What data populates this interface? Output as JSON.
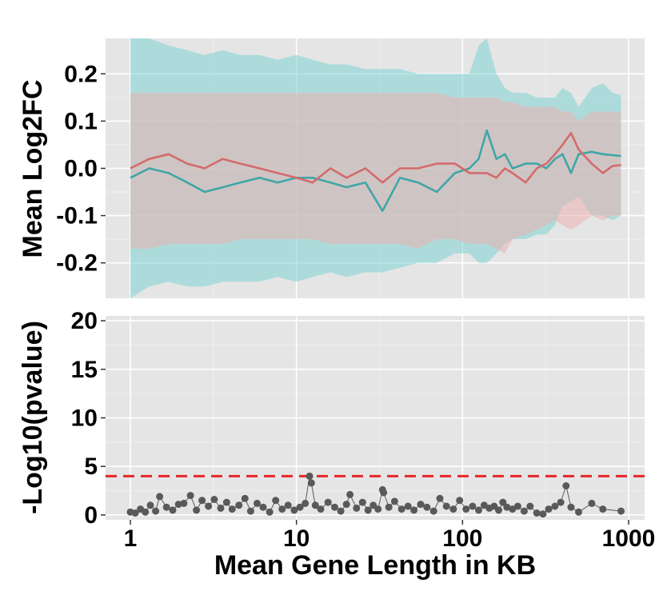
{
  "chart_data": [
    {
      "panel": "top",
      "type": "line",
      "ylabel": "Mean Log2FC",
      "x_scale": "log10",
      "xlim": [
        1,
        900
      ],
      "ylim": [
        -0.275,
        0.275
      ],
      "y_ticks": [
        -0.2,
        -0.1,
        0.0,
        0.1,
        0.2
      ],
      "y_tick_labels": [
        "-0.2",
        "-0.1",
        "0.0",
        "0.1",
        "0.2"
      ],
      "grid": true,
      "ribbon": "shaded band around each line",
      "series": [
        {
          "color": "#40a6a6",
          "ribbon_color": "#7fd3d3",
          "x": [
            1,
            1.3,
            1.7,
            2.2,
            2.8,
            3.6,
            4.6,
            6,
            7.7,
            10,
            12.5,
            16,
            20,
            26,
            33,
            42,
            54,
            70,
            90,
            110,
            125,
            140,
            160,
            180,
            200,
            240,
            280,
            320,
            360,
            400,
            450,
            500,
            600,
            700,
            800,
            900
          ],
          "y": [
            -0.02,
            0.0,
            -0.01,
            -0.03,
            -0.05,
            -0.04,
            -0.03,
            -0.02,
            -0.03,
            -0.02,
            -0.02,
            -0.03,
            -0.04,
            -0.03,
            -0.09,
            -0.02,
            -0.03,
            -0.05,
            -0.01,
            0.0,
            0.02,
            0.08,
            0.02,
            0.03,
            0.0,
            0.01,
            0.01,
            0.0,
            0.02,
            0.03,
            -0.01,
            0.03,
            0.035,
            0.03,
            0.028,
            0.026
          ],
          "band_lower": [
            -0.28,
            -0.25,
            -0.24,
            -0.25,
            -0.25,
            -0.24,
            -0.24,
            -0.24,
            -0.23,
            -0.24,
            -0.23,
            -0.22,
            -0.23,
            -0.22,
            -0.22,
            -0.21,
            -0.2,
            -0.2,
            -0.18,
            -0.18,
            -0.2,
            -0.2,
            -0.18,
            -0.16,
            -0.15,
            -0.15,
            -0.14,
            -0.14,
            -0.12,
            -0.08,
            -0.07,
            -0.06,
            -0.1,
            -0.1,
            -0.11,
            -0.1
          ],
          "band_upper": [
            0.28,
            0.28,
            0.26,
            0.25,
            0.24,
            0.25,
            0.24,
            0.24,
            0.23,
            0.24,
            0.23,
            0.22,
            0.22,
            0.21,
            0.21,
            0.21,
            0.2,
            0.2,
            0.2,
            0.2,
            0.26,
            0.28,
            0.2,
            0.17,
            0.16,
            0.16,
            0.15,
            0.15,
            0.15,
            0.17,
            0.16,
            0.13,
            0.17,
            0.18,
            0.16,
            0.155
          ]
        },
        {
          "color": "#d26b6b",
          "ribbon_color": "#ebb0b0",
          "x": [
            1,
            1.3,
            1.7,
            2.2,
            2.8,
            3.6,
            4.6,
            6,
            7.7,
            10,
            12.5,
            16,
            20,
            26,
            33,
            42,
            54,
            70,
            90,
            110,
            125,
            140,
            160,
            180,
            200,
            240,
            280,
            320,
            360,
            400,
            450,
            500,
            600,
            700,
            800,
            900
          ],
          "y": [
            0.0,
            0.02,
            0.03,
            0.01,
            0.0,
            0.02,
            0.01,
            0.0,
            -0.01,
            -0.02,
            -0.03,
            0.0,
            -0.02,
            0.0,
            -0.03,
            0.0,
            0.0,
            0.01,
            0.01,
            -0.01,
            -0.01,
            -0.01,
            -0.02,
            0.0,
            -0.01,
            -0.03,
            0.0,
            0.01,
            0.03,
            0.05,
            0.075,
            0.04,
            0.01,
            -0.01,
            0.005,
            0.007
          ],
          "band_lower": [
            -0.17,
            -0.17,
            -0.16,
            -0.16,
            -0.16,
            -0.16,
            -0.15,
            -0.15,
            -0.15,
            -0.15,
            -0.15,
            -0.16,
            -0.16,
            -0.16,
            -0.16,
            -0.16,
            -0.17,
            -0.15,
            -0.15,
            -0.16,
            -0.16,
            -0.16,
            -0.17,
            -0.18,
            -0.15,
            -0.14,
            -0.13,
            -0.12,
            -0.11,
            -0.12,
            -0.13,
            -0.12,
            -0.1,
            -0.11,
            -0.1,
            -0.1
          ],
          "band_upper": [
            0.16,
            0.16,
            0.16,
            0.16,
            0.16,
            0.16,
            0.16,
            0.16,
            0.16,
            0.16,
            0.16,
            0.16,
            0.16,
            0.16,
            0.16,
            0.16,
            0.16,
            0.16,
            0.15,
            0.15,
            0.15,
            0.15,
            0.15,
            0.14,
            0.14,
            0.13,
            0.13,
            0.13,
            0.13,
            0.12,
            0.12,
            0.1,
            0.12,
            0.12,
            0.12,
            0.12
          ]
        }
      ]
    },
    {
      "panel": "bottom",
      "type": "scatter",
      "ylabel": "-Log10(pvalue)",
      "xlabel": "Mean Gene Length in KB",
      "x_scale": "log10",
      "xlim": [
        1,
        900
      ],
      "ylim": [
        -0.5,
        20.5
      ],
      "y_ticks": [
        0,
        5,
        10,
        15,
        20
      ],
      "y_tick_labels": [
        "0",
        "5",
        "10",
        "15",
        "20"
      ],
      "x_ticks": [
        1,
        10,
        100,
        1000
      ],
      "x_tick_labels": [
        "1",
        "10",
        "100",
        "1000"
      ],
      "threshold": {
        "value": 4.0,
        "color": "#e8262a",
        "style": "dashed"
      },
      "point_color": "#595959",
      "grid": true,
      "series": [
        {
          "x": [
            1,
            1.07,
            1.15,
            1.23,
            1.32,
            1.42,
            1.5,
            1.65,
            1.8,
            1.95,
            2.1,
            2.3,
            2.5,
            2.7,
            2.95,
            3.2,
            3.5,
            3.8,
            4.1,
            4.5,
            4.9,
            5.3,
            5.8,
            6.3,
            6.9,
            7.5,
            8.2,
            8.9,
            9.7,
            10.5,
            11.3,
            12.0,
            12.3,
            13,
            14,
            15.5,
            17,
            18.5,
            20,
            21,
            23,
            25,
            27,
            29,
            31,
            33,
            33.5,
            36,
            39,
            43,
            47,
            51,
            56,
            61,
            67,
            73,
            80,
            88,
            96,
            105,
            115,
            125,
            135,
            145,
            155,
            165,
            175,
            185,
            200,
            215,
            235,
            255,
            280,
            305,
            330,
            360,
            390,
            420,
            450,
            500,
            600,
            700,
            900
          ],
          "y": [
            0.3,
            0.2,
            0.6,
            0.3,
            1.0,
            0.4,
            1.9,
            0.8,
            0.5,
            1.1,
            1.2,
            2.0,
            0.5,
            1.5,
            0.9,
            1.6,
            0.7,
            1.3,
            0.6,
            1.0,
            1.7,
            0.4,
            1.2,
            0.8,
            0.3,
            1.5,
            0.6,
            1.0,
            0.5,
            0.8,
            1.2,
            4.0,
            3.3,
            1.0,
            0.6,
            1.3,
            0.8,
            0.4,
            1.1,
            2.1,
            0.7,
            1.3,
            0.5,
            1.0,
            0.6,
            2.6,
            2.3,
            0.8,
            1.4,
            0.6,
            0.9,
            0.5,
            1.1,
            0.8,
            0.4,
            1.7,
            0.9,
            0.6,
            1.5,
            0.6,
            0.9,
            0.5,
            1.0,
            0.7,
            0.9,
            0.5,
            1.3,
            0.8,
            0.6,
            0.9,
            0.4,
            0.9,
            0.2,
            0.1,
            0.6,
            0.9,
            1.3,
            3.0,
            0.8,
            0.3,
            1.2,
            0.6,
            0.4
          ]
        }
      ]
    }
  ]
}
